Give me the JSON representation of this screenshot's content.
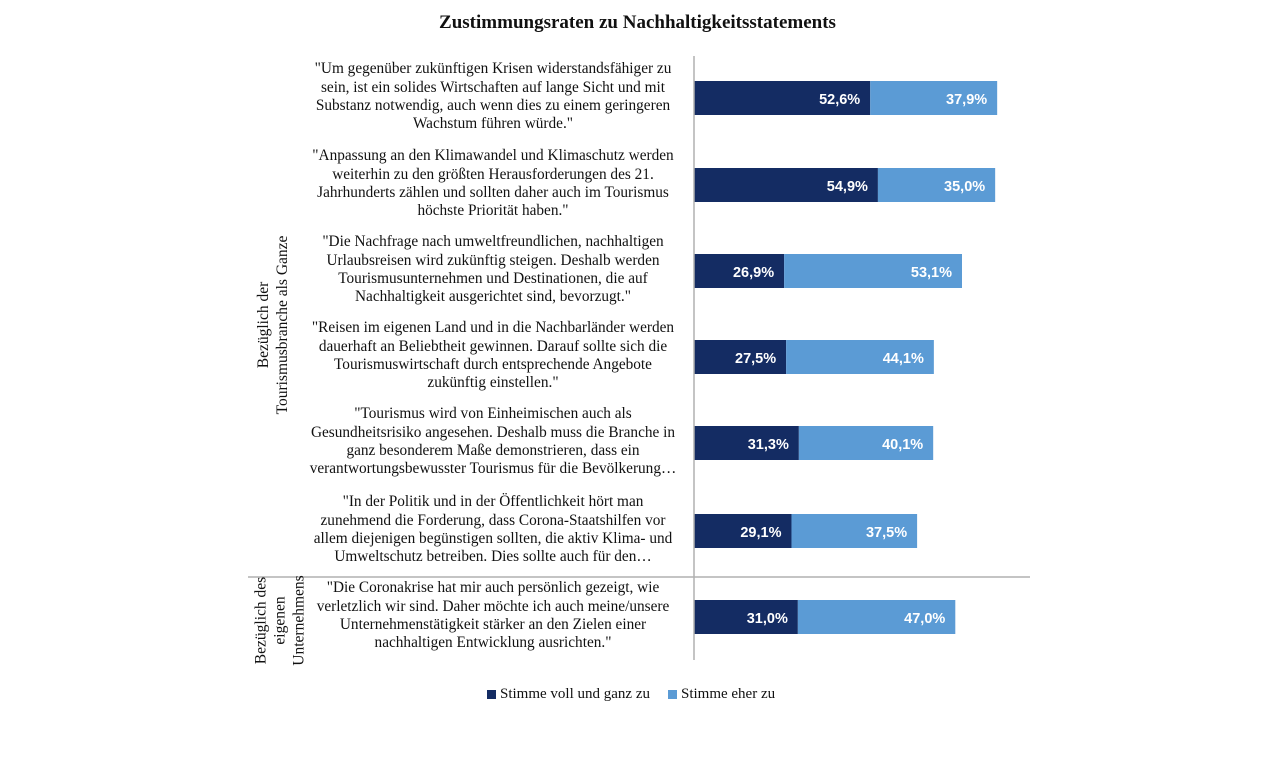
{
  "chart_data": {
    "type": "bar",
    "orientation": "horizontal",
    "stacked": true,
    "title": "Zustimmungsraten zu Nachhaltigkeitsstatements",
    "groups": [
      "Bezüglich der Tourismusbranche als Ganze",
      "Bezüglich des eigenen Unternehmens"
    ],
    "categories": [
      "\"Um gegenüber zukünftigen Krisen widerstandsfähiger zu sein, ist ein solides Wirtschaften auf lange Sicht und mit Substanz notwendig, auch wenn dies zu einem geringeren Wachstum führen würde.\"",
      "\"Anpassung an den Klimawandel und Klimaschutz werden weiterhin zu den größten Herausforderungen des 21. Jahrhunderts zählen und sollten daher auch im Tourismus höchste Priorität haben.\"",
      "\"Die Nachfrage nach umweltfreundlichen, nachhaltigen Urlaubsreisen wird zukünftig steigen. Deshalb werden Tourismusunternehmen und Destinationen, die auf Nachhaltigkeit ausgerichtet sind, bevorzugt.\"",
      "\"Reisen im eigenen Land und in die Nachbarländer werden dauerhaft an Beliebtheit gewinnen. Darauf sollte sich die Tourismuswirtschaft durch entsprechende Angebote zukünftig einstellen.\"",
      "\"Tourismus wird von Einheimischen auch als Gesundheitsrisiko angesehen. Deshalb muss die Branche in ganz besonderem Maße demonstrieren, dass ein verantwortungsbewusster Tourismus für die Bevölkerung…",
      "\"In der Politik und in der Öffentlichkeit hört man zunehmend die Forderung, dass Corona-Staatshilfen vor allem diejenigen begünstigen sollten, die aktiv Klima- und Umweltschutz betreiben. Dies sollte auch für den…",
      "\"Die Coronakrise hat mir auch persönlich gezeigt, wie verletzlich wir sind. Daher möchte ich auch meine/unsere Unternehmenstätigkeit stärker an den Zielen einer nachhaltigen Entwicklung ausrichten.\""
    ],
    "category_lines": [
      [
        "\"Um gegenüber zukünftigen Krisen widerstandsfähiger zu",
        "sein, ist ein solides Wirtschaften auf lange Sicht und mit",
        "Substanz notwendig, auch wenn dies zu einem geringeren",
        "Wachstum führen würde.\""
      ],
      [
        "\"Anpassung an den Klimawandel und Klimaschutz werden",
        "weiterhin zu den größten Herausforderungen des 21.",
        "Jahrhunderts zählen und sollten daher auch im Tourismus",
        "höchste Priorität haben.\""
      ],
      [
        "\"Die Nachfrage nach umweltfreundlichen, nachhaltigen",
        "Urlaubsreisen wird zukünftig steigen. Deshalb werden",
        "Tourismusunternehmen und Destinationen, die auf",
        "Nachhaltigkeit ausgerichtet sind, bevorzugt.\""
      ],
      [
        "\"Reisen im eigenen Land und in die Nachbarländer werden",
        "dauerhaft an Beliebtheit gewinnen. Darauf sollte sich die",
        "Tourismuswirtschaft durch entsprechende Angebote",
        "zukünftig einstellen.\""
      ],
      [
        "\"Tourismus wird von Einheimischen auch als",
        "Gesundheitsrisiko angesehen. Deshalb muss die Branche in",
        "ganz besonderem Maße demonstrieren, dass ein",
        "verantwortungsbewusster Tourismus für die Bevölkerung…"
      ],
      [
        "\"In der Politik und in der Öffentlichkeit hört man",
        "zunehmend die Forderung, dass Corona-Staatshilfen vor",
        "allem diejenigen begünstigen sollten, die aktiv Klima- und",
        "Umweltschutz betreiben. Dies sollte auch für den…"
      ],
      [
        "\"Die Coronakrise hat mir auch persönlich gezeigt, wie",
        "verletzlich wir sind. Daher möchte ich auch meine/unsere",
        "Unternehmenstätigkeit stärker an den Zielen einer",
        "nachhaltigen Entwicklung ausrichten.\""
      ]
    ],
    "category_group": [
      0,
      0,
      0,
      0,
      0,
      0,
      1
    ],
    "group_label_lines": [
      [
        "Bezüglich der",
        "Tourismusbranche als Ganze"
      ],
      [
        "Bezüglich des",
        "eigenen",
        "Unternehmens"
      ]
    ],
    "series": [
      {
        "name": "Stimme voll und ganz zu",
        "values": [
          52.6,
          54.9,
          26.9,
          27.5,
          31.3,
          29.1,
          31.0
        ],
        "labels": [
          "52,6%",
          "54,9%",
          "26,9%",
          "27,5%",
          "31,3%",
          "29,1%",
          "31,0%"
        ],
        "color": "#142c63"
      },
      {
        "name": "Stimme eher zu",
        "values": [
          37.9,
          35.0,
          53.1,
          44.1,
          40.1,
          37.5,
          47.0
        ],
        "labels": [
          "37,9%",
          "35,0%",
          "53,1%",
          "44,1%",
          "40,1%",
          "37,5%",
          "47,0%"
        ],
        "color": "#5b9bd5"
      }
    ],
    "xlim": [
      0,
      100
    ],
    "grid": false,
    "legend": "bottom",
    "axis_color": "#b0b0b0"
  }
}
